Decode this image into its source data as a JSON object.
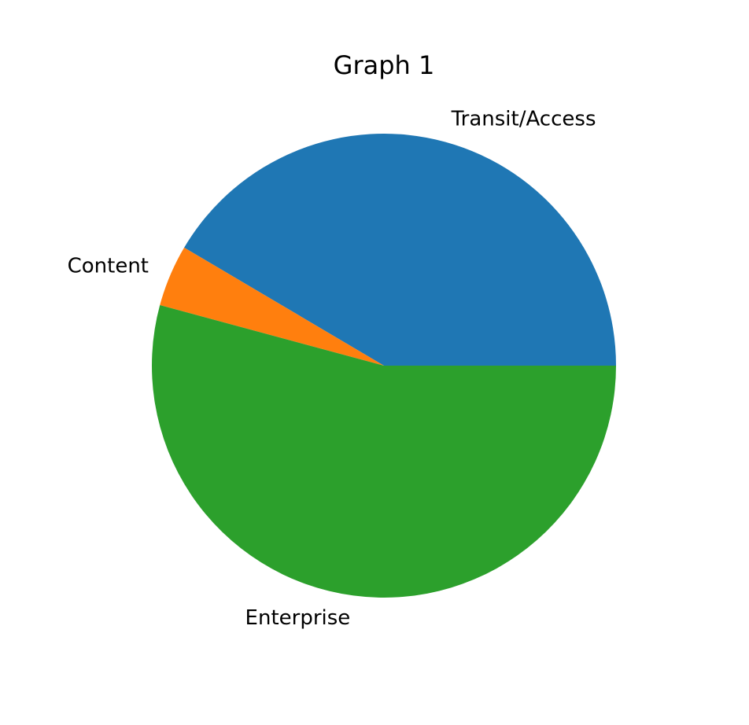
{
  "chart_data": {
    "type": "pie",
    "title": "Graph 1",
    "categories": [
      "Transit/Access",
      "Content",
      "Enterprise"
    ],
    "values": [
      41.5,
      4.3,
      54.2
    ],
    "colors": [
      "#1f77b4",
      "#ff7f0e",
      "#2ca02c"
    ],
    "start_angle_deg": 0,
    "direction": "counterclockwise"
  }
}
